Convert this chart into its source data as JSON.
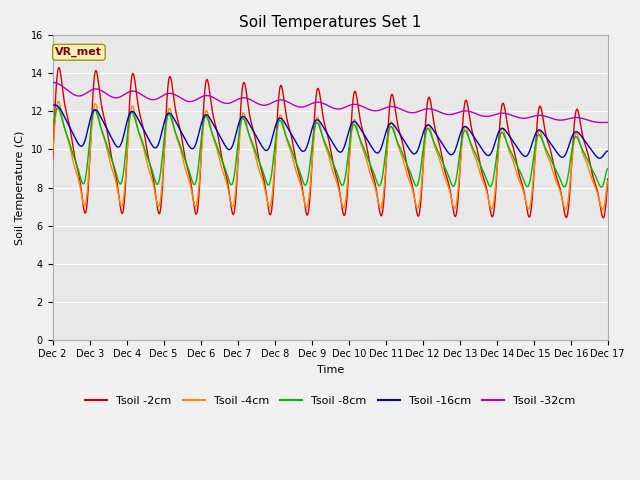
{
  "title": "Soil Temperatures Set 1",
  "xlabel": "Time",
  "ylabel": "Soil Temperature (C)",
  "ylim": [
    0,
    16
  ],
  "yticks": [
    0,
    2,
    4,
    6,
    8,
    10,
    12,
    14,
    16
  ],
  "xlim": [
    0,
    15
  ],
  "xtick_labels": [
    "Dec 2",
    "Dec 3",
    "Dec 4",
    "Dec 5",
    "Dec 6",
    "Dec 7",
    "Dec 8",
    "Dec 9",
    "Dec 10",
    "Dec 11",
    "Dec 12",
    "Dec 13",
    "Dec 14",
    "Dec 15",
    "Dec 16",
    "Dec 17"
  ],
  "line_colors": [
    "#dd0000",
    "#ff8800",
    "#00bb00",
    "#0000cc",
    "#bb00bb"
  ],
  "line_labels": [
    "Tsoil -2cm",
    "Tsoil -4cm",
    "Tsoil -8cm",
    "Tsoil -16cm",
    "Tsoil -32cm"
  ],
  "bg_color_upper": "#e8e8e8",
  "bg_color_lower": "#d8d8d8",
  "fig_color": "#f0f0f0",
  "vrmet_label": "VR_met",
  "title_fontsize": 11,
  "legend_fontsize": 8,
  "axis_label_fontsize": 8,
  "tick_fontsize": 7
}
